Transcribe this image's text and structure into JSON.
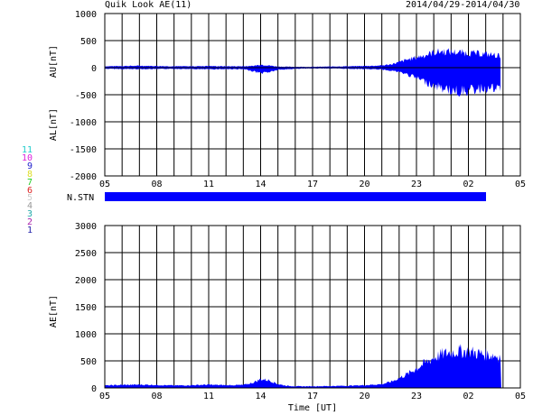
{
  "header": {
    "title": "Quik Look AE(11)",
    "dates": "2014/04/29-2014/04/30"
  },
  "stations": [
    {
      "label": "11",
      "color": "#22cccc"
    },
    {
      "label": "10",
      "color": "#dd22dd"
    },
    {
      "label": "9",
      "color": "#2222cc"
    },
    {
      "label": "8",
      "color": "#dddd22"
    },
    {
      "label": "7",
      "color": "#22cc22"
    },
    {
      "label": "6",
      "color": "#dd2222"
    },
    {
      "label": "5",
      "color": "#cccccc"
    },
    {
      "label": "4",
      "color": "#999999"
    },
    {
      "label": "3",
      "color": "#22aaaa"
    },
    {
      "label": "2",
      "color": "#aa22aa"
    },
    {
      "label": "1",
      "color": "#2222aa"
    }
  ],
  "nstn_label": "N.STN",
  "chart_data": [
    {
      "type": "area",
      "ylabel_top": "AU[nT]",
      "ylabel_bottom": "AL[nT]",
      "xlim": [
        5,
        29
      ],
      "ylim": [
        -2000,
        1000
      ],
      "yticks": [
        1000,
        500,
        0,
        -500,
        -1000,
        -1500,
        -2000
      ],
      "xtick_labels": [
        "05",
        "08",
        "11",
        "14",
        "17",
        "20",
        "23",
        "02",
        "05"
      ],
      "grid": true,
      "color": "#0000ff",
      "series": [
        {
          "values_x": [
            5,
            6,
            7,
            8,
            9,
            10,
            11,
            12,
            13,
            13.5,
            14,
            14.5,
            15,
            16,
            17,
            18,
            19,
            20,
            21,
            21.5,
            22,
            22.5,
            23,
            23.5,
            24,
            24.5,
            25,
            25.5,
            26,
            26.5,
            27,
            27.5,
            27.9
          ],
          "au": [
            25,
            30,
            35,
            30,
            25,
            25,
            30,
            25,
            25,
            30,
            55,
            40,
            20,
            15,
            15,
            20,
            25,
            30,
            40,
            60,
            100,
            150,
            190,
            230,
            280,
            300,
            290,
            280,
            270,
            260,
            250,
            230,
            220
          ],
          "al": [
            -20,
            -25,
            -25,
            -25,
            -20,
            -25,
            -30,
            -25,
            -30,
            -60,
            -100,
            -80,
            -40,
            -20,
            -15,
            -15,
            -20,
            -25,
            -35,
            -50,
            -80,
            -130,
            -190,
            -260,
            -330,
            -380,
            -420,
            -440,
            -420,
            -400,
            -380,
            -390,
            -400
          ]
        }
      ]
    },
    {
      "type": "area",
      "ylabel": "AE[nT]",
      "xlabel": "Time [UT]",
      "xlim": [
        5,
        29
      ],
      "ylim": [
        0,
        3000
      ],
      "yticks": [
        3000,
        2500,
        2000,
        1500,
        1000,
        500,
        0
      ],
      "xtick_labels": [
        "05",
        "08",
        "11",
        "14",
        "17",
        "20",
        "23",
        "02",
        "05"
      ],
      "grid": true,
      "color": "#0000ff",
      "series": [
        {
          "values_x": [
            5,
            6,
            7,
            8,
            9,
            10,
            11,
            12,
            13,
            13.5,
            14,
            14.5,
            15,
            15.5,
            16,
            17,
            18,
            19,
            20,
            20.5,
            21,
            21.5,
            22,
            22.5,
            23,
            23.5,
            24,
            24.5,
            25,
            25.5,
            26,
            26.5,
            27,
            27.5,
            27.9
          ],
          "ae": [
            45,
            55,
            60,
            55,
            45,
            50,
            60,
            50,
            55,
            90,
            160,
            140,
            70,
            40,
            30,
            30,
            35,
            40,
            50,
            60,
            70,
            110,
            180,
            260,
            360,
            460,
            560,
            620,
            660,
            680,
            670,
            640,
            620,
            600,
            580
          ]
        }
      ]
    }
  ]
}
